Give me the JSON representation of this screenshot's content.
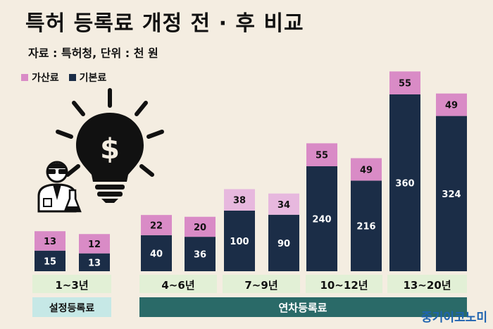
{
  "header": {
    "title": "특허 등록료 개정 전 · 후 비교",
    "subtitle": "자료 : 특허청, 단위 : 천 원"
  },
  "legend": [
    {
      "label": "가산료",
      "color": "#d98bc6"
    },
    {
      "label": "기본료",
      "color": "#1b2d47"
    }
  ],
  "colors": {
    "base": "#1b2d47",
    "surcharge_dark": "#d98bc6",
    "surcharge_light": "#e7b8de",
    "period_label_bg": "#e2f0d6",
    "setting_fee_bg": "#c6e8e6",
    "annual_fee_bg": "#2a6a68",
    "brand": "#1e63b0"
  },
  "chart_data": {
    "type": "bar",
    "stacked": true,
    "groups": [
      "1~3년",
      "4~6년",
      "7~9년",
      "10~12년",
      "13~20년"
    ],
    "categories": [
      "1~3년",
      "1~3년",
      "4~6년",
      "4~6년",
      "7~9년",
      "7~9년",
      "10~12년",
      "10~12년",
      "13~20년",
      "13~20년"
    ],
    "series": [
      {
        "name": "기본료",
        "values": [
          15,
          13,
          40,
          36,
          100,
          90,
          240,
          216,
          360,
          324
        ]
      },
      {
        "name": "가산료",
        "values": [
          13,
          12,
          22,
          20,
          38,
          34,
          55,
          49,
          55,
          49
        ]
      }
    ],
    "fee_types": [
      {
        "label": "설정등록료",
        "groups": [
          "1~3년"
        ]
      },
      {
        "label": "연차등록료",
        "groups": [
          "4~6년",
          "7~9년",
          "10~12년",
          "13~20년"
        ]
      }
    ],
    "icon": "lightbulb-dollar-scientist-icon"
  },
  "brand": "중기이코노미"
}
